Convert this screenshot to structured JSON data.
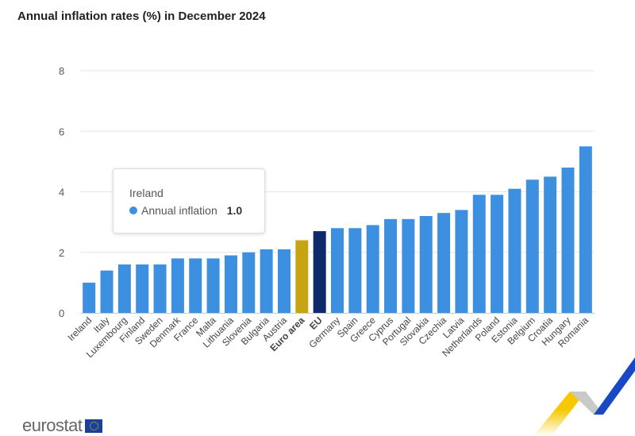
{
  "chart_data": {
    "type": "bar",
    "title": "Annual inflation rates (%) in December 2024",
    "categories": [
      "Ireland",
      "Italy",
      "Luxembourg",
      "Finland",
      "Sweden",
      "Denmark",
      "France",
      "Malta",
      "Lithuania",
      "Slovenia",
      "Bulgaria",
      "Austria",
      "Euro area",
      "EU",
      "Germany",
      "Spain",
      "Greece",
      "Cyprus",
      "Portugal",
      "Slovakia",
      "Czechia",
      "Latvia",
      "Netherlands",
      "Poland",
      "Estonia",
      "Belgium",
      "Croatia",
      "Hungary",
      "Romania"
    ],
    "series": [
      {
        "name": "Annual inflation",
        "values": [
          1.0,
          1.4,
          1.6,
          1.6,
          1.6,
          1.8,
          1.8,
          1.8,
          1.9,
          2.0,
          2.1,
          2.1,
          2.4,
          2.7,
          2.8,
          2.8,
          2.9,
          3.1,
          3.1,
          3.2,
          3.3,
          3.4,
          3.9,
          3.9,
          4.1,
          4.4,
          4.5,
          4.8,
          5.5
        ]
      }
    ],
    "highlight": {
      "Euro area": "#c8a415",
      "EU": "#0e2a6b"
    },
    "bold_categories": [
      "Euro area",
      "EU"
    ],
    "bar_color": "#3d8fe0",
    "ylim": [
      0,
      8
    ],
    "yticks": [
      0,
      2,
      4,
      6,
      8
    ],
    "grid": true,
    "xlabel": "",
    "ylabel": ""
  },
  "tooltip": {
    "category": "Ireland",
    "series": "Annual inflation",
    "value": "1.0"
  },
  "footer": {
    "logo": "eurostat"
  }
}
